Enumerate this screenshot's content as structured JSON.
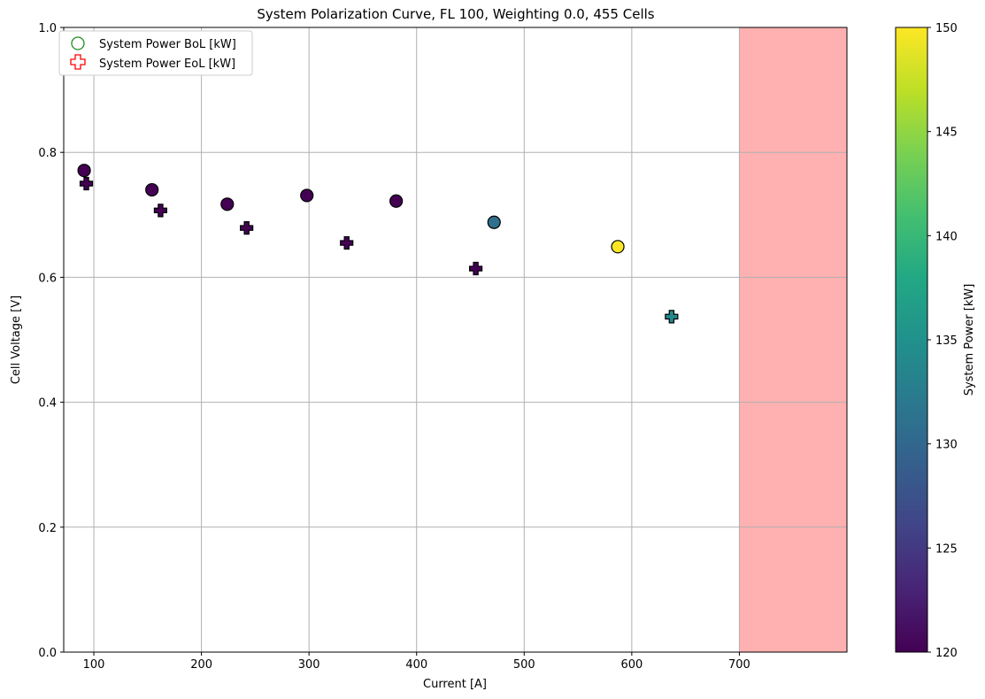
{
  "chart_data": {
    "type": "scatter",
    "title": "System Polarization Curve, FL 100, Weighting 0.0, 455 Cells",
    "xlabel": "Current [A]",
    "ylabel": "Cell Voltage [V]",
    "xlim": [
      72,
      800
    ],
    "ylim": [
      0,
      1.0
    ],
    "xticks": [
      "100",
      "200",
      "300",
      "400",
      "500",
      "600",
      "700"
    ],
    "yticks": [
      "0.0",
      "0.2",
      "0.4",
      "0.6",
      "0.8",
      "1.0"
    ],
    "grid": true,
    "legend_position": "top-left",
    "shaded_region": {
      "x_from": 700,
      "x_to": 800,
      "color": "#ffb1b1"
    },
    "series": [
      {
        "name": "System Power BoL [kW]",
        "marker": "circle",
        "legend_color": "#228b22",
        "points": [
          {
            "x": 91,
            "y": 0.771,
            "power": 120
          },
          {
            "x": 154,
            "y": 0.74,
            "power": 120
          },
          {
            "x": 224,
            "y": 0.717,
            "power": 120
          },
          {
            "x": 298,
            "y": 0.731,
            "power": 120
          },
          {
            "x": 381,
            "y": 0.722,
            "power": 120
          },
          {
            "x": 472,
            "y": 0.688,
            "power": 131
          },
          {
            "x": 587,
            "y": 0.649,
            "power": 150
          }
        ]
      },
      {
        "name": "System Power EoL [kW]",
        "marker": "plus",
        "legend_color": "#ff0000",
        "points": [
          {
            "x": 93,
            "y": 0.75,
            "power": 120
          },
          {
            "x": 162,
            "y": 0.707,
            "power": 120
          },
          {
            "x": 242,
            "y": 0.679,
            "power": 120
          },
          {
            "x": 335,
            "y": 0.655,
            "power": 120
          },
          {
            "x": 455,
            "y": 0.614,
            "power": 120
          },
          {
            "x": 637,
            "y": 0.537,
            "power": 134
          }
        ]
      }
    ],
    "colorbar": {
      "label": "System Power [kW]",
      "colormap": "viridis",
      "range": [
        120,
        150
      ],
      "ticks": [
        "120",
        "125",
        "130",
        "135",
        "140",
        "145",
        "150"
      ]
    }
  }
}
